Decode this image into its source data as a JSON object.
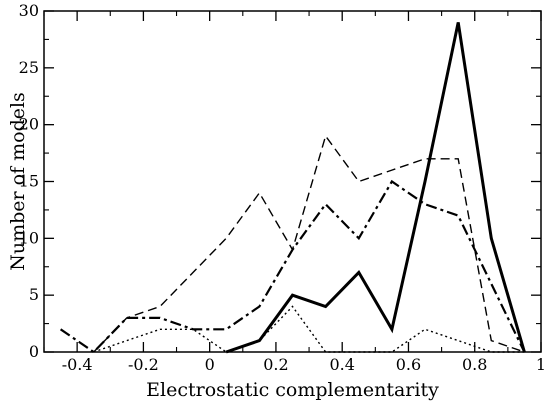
{
  "chart_data": {
    "type": "line",
    "title": "",
    "xlabel": "Electrostatic complementarity",
    "ylabel": "Number of models",
    "xlim": [
      -0.5,
      1.0
    ],
    "ylim": [
      0,
      30
    ],
    "xticks": [
      -0.4,
      -0.2,
      0,
      0.2,
      0.4,
      0.6,
      0.8,
      1
    ],
    "xtick_labels": [
      "-0.4",
      "-0.2",
      "0",
      "0.2",
      "0.4",
      "0.6",
      "0.8",
      "1"
    ],
    "yticks": [
      0,
      5,
      10,
      15,
      20,
      25,
      30
    ],
    "ytick_labels": [
      "0",
      "5",
      "10",
      "15",
      "20",
      "25",
      "30"
    ],
    "grid": false,
    "legend": "none",
    "series": [
      {
        "style": "solid-thick",
        "x": [
          0.05,
          0.15,
          0.25,
          0.35,
          0.45,
          0.55,
          0.65,
          0.75,
          0.85,
          0.95
        ],
        "y": [
          0,
          1,
          5,
          4,
          7,
          2,
          15,
          29,
          10,
          0
        ]
      },
      {
        "style": "dashed",
        "x": [
          -0.35,
          -0.25,
          -0.15,
          -0.05,
          0.05,
          0.15,
          0.25,
          0.35,
          0.45,
          0.55,
          0.65,
          0.75,
          0.85,
          0.95
        ],
        "y": [
          0,
          3,
          4,
          7,
          10,
          14,
          9,
          19,
          15,
          16,
          17,
          17,
          1,
          0
        ]
      },
      {
        "style": "dash-dot",
        "x": [
          -0.45,
          -0.35,
          -0.25,
          -0.15,
          -0.05,
          0.05,
          0.15,
          0.25,
          0.35,
          0.45,
          0.55,
          0.65,
          0.75,
          0.85,
          0.95
        ],
        "y": [
          2,
          0,
          3,
          3,
          2,
          2,
          4,
          9,
          13,
          10,
          15,
          13,
          12,
          6,
          0
        ]
      },
      {
        "style": "dotted",
        "x": [
          -0.35,
          -0.25,
          -0.15,
          -0.05,
          0.05,
          0.15,
          0.25,
          0.35,
          0.45,
          0.55,
          0.65,
          0.75,
          0.85,
          0.95
        ],
        "y": [
          0,
          1,
          2,
          2,
          0,
          1,
          4,
          0,
          0,
          0,
          2,
          1,
          0,
          0
        ]
      }
    ]
  }
}
